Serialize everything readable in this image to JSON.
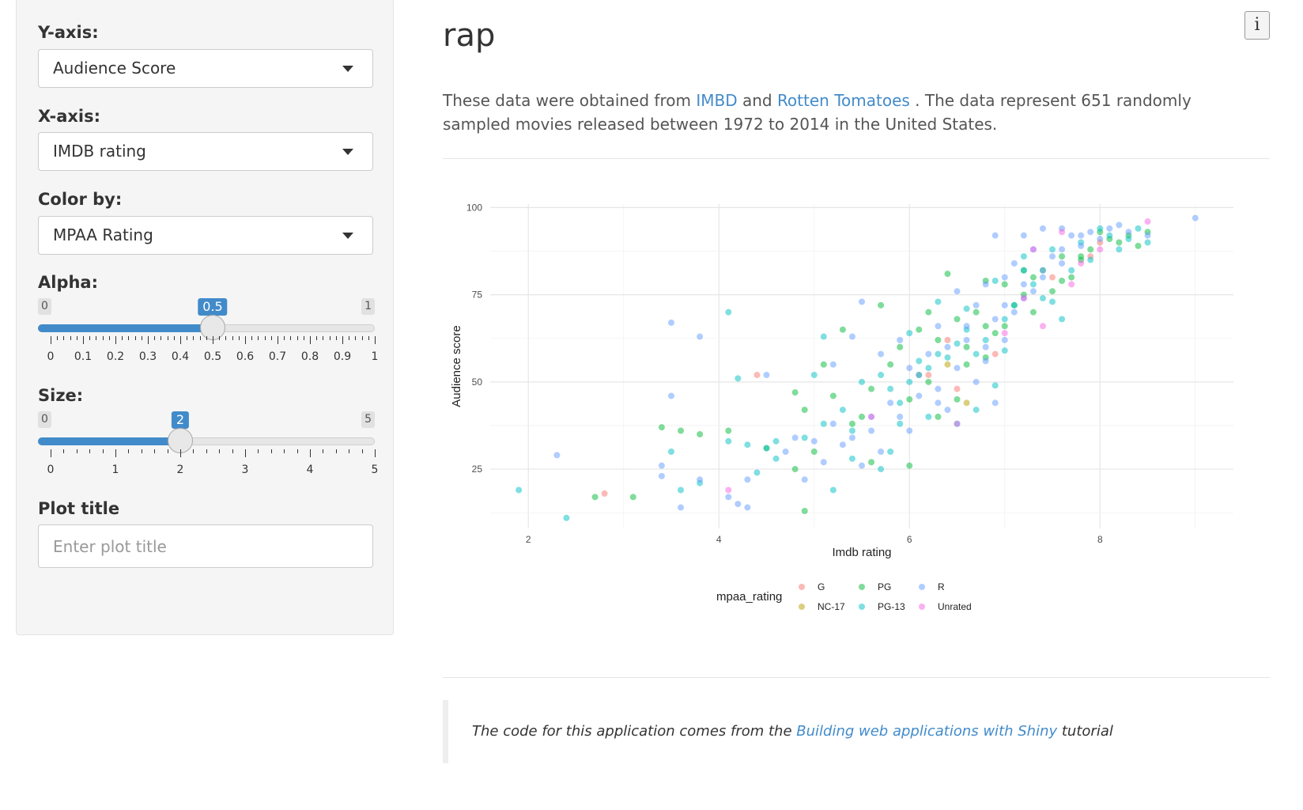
{
  "sidebar": {
    "y_axis": {
      "label": "Y-axis:",
      "value": "Audience Score"
    },
    "x_axis": {
      "label": "X-axis:",
      "value": "IMDB rating"
    },
    "color_by": {
      "label": "Color by:",
      "value": "MPAA Rating"
    },
    "alpha": {
      "label": "Alpha:",
      "min": "0",
      "max": "1",
      "value": "0.5",
      "value_num": 0.5,
      "range": [
        0,
        1
      ],
      "ticks": [
        "0",
        "0.1",
        "0.2",
        "0.3",
        "0.4",
        "0.5",
        "0.6",
        "0.7",
        "0.8",
        "0.9",
        "1"
      ]
    },
    "size": {
      "label": "Size:",
      "min": "0",
      "max": "5",
      "value": "2",
      "value_num": 2,
      "range": [
        0,
        5
      ],
      "ticks": [
        "0",
        "1",
        "2",
        "3",
        "4",
        "5"
      ]
    },
    "plot_title": {
      "label": "Plot title",
      "placeholder": "Enter plot title",
      "value": ""
    }
  },
  "main": {
    "title": "rap",
    "info_button": "i",
    "desc": {
      "before": "These data were obtained from ",
      "link1": "IMBD",
      "mid": " and ",
      "link2": "Rotten Tomatoes",
      "after": " . The data represent 651 randomly sampled movies released between 1972 to 2014 in the United States."
    },
    "footer": {
      "before": "The code for this application comes from the ",
      "link": "Building web applications with Shiny",
      "after": " tutorial"
    }
  },
  "colors": {
    "G": "#F8766D",
    "NC-17": "#B79F00",
    "PG": "#00BA38",
    "PG-13": "#00BFC4",
    "R": "#619CFF",
    "Unrated": "#F564E3",
    "accent": "#428bca"
  },
  "chart_data": {
    "type": "scatter",
    "xlabel": "Imdb rating",
    "ylabel": "Audience score",
    "xlim": [
      1.6,
      9.4
    ],
    "ylim": [
      8,
      101
    ],
    "x_ticks": [
      2,
      4,
      6,
      8
    ],
    "y_ticks": [
      25,
      50,
      75,
      100
    ],
    "grid": true,
    "legend": {
      "title": "mpaa_rating",
      "position": "bottom",
      "entries": [
        "G",
        "NC-17",
        "PG",
        "PG-13",
        "R",
        "Unrated"
      ]
    },
    "point_alpha": 0.5,
    "series": [
      {
        "name": "G",
        "points": [
          [
            2.8,
            18
          ],
          [
            4.4,
            52
          ],
          [
            6.2,
            52
          ],
          [
            6.5,
            48
          ],
          [
            6.9,
            58
          ],
          [
            7.5,
            80
          ],
          [
            7.9,
            86
          ],
          [
            8.0,
            90
          ],
          [
            6.4,
            62
          ]
        ]
      },
      {
        "name": "NC-17",
        "points": [
          [
            6.4,
            55
          ],
          [
            6.6,
            44
          ]
        ]
      },
      {
        "name": "PG",
        "points": [
          [
            2.7,
            17
          ],
          [
            3.1,
            17
          ],
          [
            3.4,
            37
          ],
          [
            3.6,
            36
          ],
          [
            3.8,
            35
          ],
          [
            4.1,
            36
          ],
          [
            4.5,
            31
          ],
          [
            4.8,
            47
          ],
          [
            4.8,
            25
          ],
          [
            4.9,
            13
          ],
          [
            5.1,
            55
          ],
          [
            5.3,
            65
          ],
          [
            5.5,
            40
          ],
          [
            5.6,
            27
          ],
          [
            5.7,
            72
          ],
          [
            5.8,
            55
          ],
          [
            5.9,
            60
          ],
          [
            6.0,
            45
          ],
          [
            6.0,
            26
          ],
          [
            6.1,
            65
          ],
          [
            6.2,
            50
          ],
          [
            6.2,
            70
          ],
          [
            6.3,
            40
          ],
          [
            6.3,
            62
          ],
          [
            6.4,
            81
          ],
          [
            6.5,
            45
          ],
          [
            6.6,
            60
          ],
          [
            6.7,
            70
          ],
          [
            6.8,
            57
          ],
          [
            6.8,
            79
          ],
          [
            6.9,
            64
          ],
          [
            7.0,
            66
          ],
          [
            7.1,
            72
          ],
          [
            7.2,
            75
          ],
          [
            7.3,
            80
          ],
          [
            7.3,
            70
          ],
          [
            7.4,
            82
          ],
          [
            7.5,
            76
          ],
          [
            7.6,
            86
          ],
          [
            7.7,
            80
          ],
          [
            7.8,
            85
          ],
          [
            7.9,
            88
          ],
          [
            8.0,
            93
          ],
          [
            8.1,
            91
          ],
          [
            8.2,
            90
          ],
          [
            8.3,
            92
          ],
          [
            8.4,
            89
          ],
          [
            8.5,
            93
          ],
          [
            5.4,
            38
          ],
          [
            5.0,
            30
          ],
          [
            4.9,
            42
          ],
          [
            5.6,
            48
          ],
          [
            6.1,
            52
          ],
          [
            6.5,
            68
          ],
          [
            7.0,
            78
          ],
          [
            7.2,
            82
          ],
          [
            7.6,
            79
          ],
          [
            7.8,
            86
          ],
          [
            6.6,
            55
          ],
          [
            6.8,
            66
          ],
          [
            5.2,
            46
          ]
        ]
      },
      {
        "name": "PG-13",
        "points": [
          [
            1.9,
            19
          ],
          [
            2.4,
            11
          ],
          [
            3.5,
            30
          ],
          [
            3.6,
            19
          ],
          [
            3.8,
            21
          ],
          [
            4.1,
            33
          ],
          [
            4.1,
            70
          ],
          [
            4.2,
            51
          ],
          [
            4.3,
            32
          ],
          [
            4.4,
            24
          ],
          [
            4.5,
            31
          ],
          [
            4.6,
            33
          ],
          [
            4.9,
            34
          ],
          [
            5.1,
            38
          ],
          [
            5.1,
            63
          ],
          [
            5.2,
            19
          ],
          [
            5.3,
            42
          ],
          [
            5.4,
            28
          ],
          [
            5.5,
            50
          ],
          [
            5.7,
            52
          ],
          [
            5.7,
            25
          ],
          [
            5.8,
            48
          ],
          [
            5.9,
            38
          ],
          [
            6.0,
            50
          ],
          [
            6.1,
            56
          ],
          [
            6.2,
            54
          ],
          [
            6.2,
            40
          ],
          [
            6.3,
            58
          ],
          [
            6.4,
            57
          ],
          [
            6.5,
            61
          ],
          [
            6.5,
            38
          ],
          [
            6.6,
            65
          ],
          [
            6.7,
            42
          ],
          [
            6.8,
            62
          ],
          [
            6.9,
            49
          ],
          [
            7.0,
            59
          ],
          [
            7.0,
            68
          ],
          [
            7.1,
            72
          ],
          [
            7.2,
            82
          ],
          [
            7.3,
            78
          ],
          [
            7.4,
            74
          ],
          [
            7.5,
            73
          ],
          [
            7.6,
            68
          ],
          [
            7.7,
            82
          ],
          [
            7.8,
            90
          ],
          [
            7.9,
            85
          ],
          [
            8.0,
            94
          ],
          [
            8.1,
            92
          ],
          [
            8.2,
            88
          ],
          [
            8.3,
            91
          ],
          [
            8.4,
            94
          ],
          [
            8.5,
            90
          ],
          [
            5.4,
            36
          ],
          [
            5.9,
            44
          ],
          [
            6.0,
            64
          ],
          [
            6.3,
            73
          ],
          [
            6.6,
            71
          ],
          [
            6.9,
            79
          ],
          [
            7.2,
            86
          ],
          [
            5.8,
            30
          ],
          [
            6.7,
            58
          ],
          [
            7.5,
            88
          ],
          [
            5.0,
            52
          ],
          [
            4.6,
            28
          ]
        ]
      },
      {
        "name": "R",
        "points": [
          [
            2.3,
            29
          ],
          [
            3.4,
            26
          ],
          [
            3.4,
            23
          ],
          [
            3.5,
            67
          ],
          [
            3.5,
            46
          ],
          [
            3.6,
            14
          ],
          [
            3.8,
            63
          ],
          [
            3.8,
            22
          ],
          [
            4.1,
            17
          ],
          [
            4.2,
            15
          ],
          [
            4.3,
            14
          ],
          [
            4.3,
            22
          ],
          [
            4.5,
            52
          ],
          [
            4.7,
            30
          ],
          [
            4.8,
            34
          ],
          [
            4.9,
            22
          ],
          [
            5.0,
            33
          ],
          [
            5.1,
            27
          ],
          [
            5.2,
            55
          ],
          [
            5.3,
            32
          ],
          [
            5.4,
            34
          ],
          [
            5.4,
            63
          ],
          [
            5.5,
            73
          ],
          [
            5.6,
            40
          ],
          [
            5.7,
            30
          ],
          [
            5.7,
            58
          ],
          [
            5.8,
            44
          ],
          [
            5.9,
            62
          ],
          [
            6.0,
            54
          ],
          [
            6.0,
            36
          ],
          [
            6.1,
            46
          ],
          [
            6.2,
            58
          ],
          [
            6.3,
            48
          ],
          [
            6.3,
            66
          ],
          [
            6.4,
            42
          ],
          [
            6.5,
            54
          ],
          [
            6.5,
            76
          ],
          [
            6.6,
            62
          ],
          [
            6.7,
            50
          ],
          [
            6.7,
            72
          ],
          [
            6.8,
            56
          ],
          [
            6.8,
            78
          ],
          [
            6.9,
            44
          ],
          [
            6.9,
            92
          ],
          [
            7.0,
            62
          ],
          [
            7.0,
            80
          ],
          [
            7.1,
            70
          ],
          [
            7.1,
            84
          ],
          [
            7.2,
            74
          ],
          [
            7.2,
            92
          ],
          [
            7.3,
            76
          ],
          [
            7.3,
            88
          ],
          [
            7.4,
            80
          ],
          [
            7.4,
            94
          ],
          [
            7.5,
            86
          ],
          [
            7.6,
            88
          ],
          [
            7.6,
            94
          ],
          [
            7.7,
            92
          ],
          [
            7.8,
            89
          ],
          [
            7.9,
            93
          ],
          [
            8.0,
            91
          ],
          [
            8.1,
            94
          ],
          [
            8.2,
            95
          ],
          [
            8.3,
            93
          ],
          [
            8.5,
            92
          ],
          [
            9.0,
            97
          ],
          [
            5.2,
            38
          ],
          [
            5.6,
            36
          ],
          [
            5.9,
            40
          ],
          [
            6.1,
            52
          ],
          [
            6.4,
            60
          ],
          [
            6.6,
            66
          ],
          [
            6.8,
            60
          ],
          [
            7.0,
            72
          ],
          [
            7.2,
            78
          ],
          [
            7.4,
            82
          ],
          [
            7.6,
            84
          ],
          [
            7.8,
            92
          ],
          [
            6.3,
            44
          ],
          [
            6.9,
            68
          ],
          [
            5.5,
            26
          ]
        ]
      },
      {
        "name": "Unrated",
        "points": [
          [
            4.1,
            19
          ],
          [
            5.6,
            40
          ],
          [
            6.5,
            38
          ],
          [
            7.0,
            64
          ],
          [
            7.3,
            88
          ],
          [
            7.4,
            66
          ],
          [
            7.6,
            93
          ],
          [
            7.7,
            78
          ],
          [
            7.8,
            84
          ],
          [
            8.0,
            88
          ],
          [
            8.5,
            96
          ],
          [
            7.2,
            74
          ]
        ]
      }
    ]
  }
}
